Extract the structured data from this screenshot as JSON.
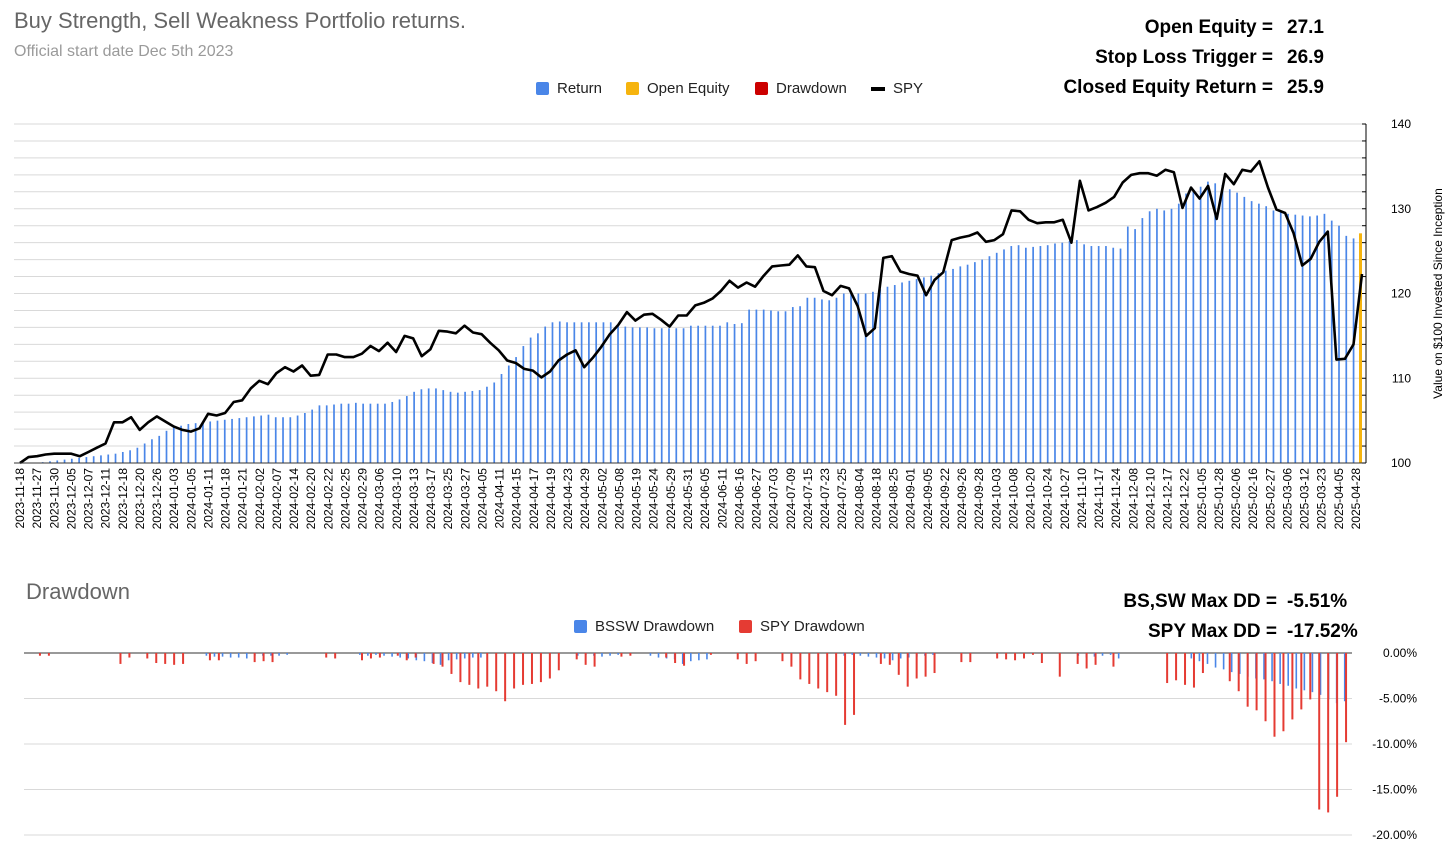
{
  "header": {
    "title": "Buy Strength, Sell Weakness Portfolio returns.",
    "subtitle": "Official start date Dec 5th 2023"
  },
  "stats": [
    {
      "label": "Open Equity =",
      "value": "27.1"
    },
    {
      "label": "Stop Loss Trigger =",
      "value": "26.9"
    },
    {
      "label": "Closed Equity Return =",
      "value": "25.9"
    }
  ],
  "drawdown_header": {
    "title": "Drawdown",
    "stats": [
      {
        "label": "BS,SW Max DD =",
        "value": "-5.51%"
      },
      {
        "label": "SPY Max DD =",
        "value": "-17.52%"
      }
    ]
  },
  "colors": {
    "return": "#4a86e8",
    "open_equity": "#f6b40e",
    "drawdown": "#cc0000",
    "spy": "#000000",
    "bssw_dd": "#4a86e8",
    "spy_dd": "#e53b33"
  },
  "chart_data": [
    {
      "type": "bar",
      "ylabel": "Value on $100 Invested Since Inception",
      "ylim": [
        100,
        140
      ],
      "yticks": [
        100,
        110,
        120,
        130,
        140
      ],
      "grid": true,
      "legend_position": "top",
      "legend": [
        "Return",
        "Open Equity",
        "Drawdown",
        "SPY"
      ],
      "x_tick_labels": [
        "2023-11-18",
        "2023-11-27",
        "2023-11-30",
        "2023-12-05",
        "2023-12-07",
        "2023-12-11",
        "2023-12-18",
        "2023-12-20",
        "2023-12-26",
        "2024-01-03",
        "2024-01-05",
        "2024-01-11",
        "2024-01-18",
        "2024-01-21",
        "2024-02-02",
        "2024-02-07",
        "2024-02-14",
        "2024-02-20",
        "2024-02-22",
        "2024-02-25",
        "2024-02-29",
        "2024-03-06",
        "2024-03-10",
        "2024-03-13",
        "2024-03-17",
        "2024-03-25",
        "2024-03-27",
        "2024-04-05",
        "2024-04-11",
        "2024-04-15",
        "2024-04-17",
        "2024-04-19",
        "2024-04-23",
        "2024-04-29",
        "2024-05-02",
        "2024-05-08",
        "2024-05-19",
        "2024-05-24",
        "2024-05-29",
        "2024-05-31",
        "2024-06-05",
        "2024-06-11",
        "2024-06-16",
        "2024-06-27",
        "2024-07-03",
        "2024-07-09",
        "2024-07-15",
        "2024-07-23",
        "2024-07-25",
        "2024-08-04",
        "2024-08-18",
        "2024-08-25",
        "2024-09-01",
        "2024-09-05",
        "2024-09-22",
        "2024-09-26",
        "2024-09-28",
        "2024-10-03",
        "2024-10-08",
        "2024-10-20",
        "2024-10-24",
        "2024-10-27",
        "2024-11-10",
        "2024-11-17",
        "2024-11-24",
        "2024-12-08",
        "2024-12-10",
        "2024-12-17",
        "2024-12-22",
        "2025-01-05",
        "2025-01-28",
        "2025-02-06",
        "2025-02-16",
        "2025-02-27",
        "2025-03-06",
        "2025-03-12",
        "2025-03-23",
        "2025-04-05",
        "2025-04-28"
      ],
      "series": [
        {
          "name": "Return",
          "values": [
            100,
            100,
            100,
            100.1,
            100.2,
            100.3,
            100.4,
            100.5,
            100.6,
            100.7,
            100.8,
            100.9,
            101,
            101.1,
            101.3,
            101.5,
            101.8,
            102.3,
            102.8,
            103.2,
            103.8,
            104.2,
            104.4,
            104.6,
            104.7,
            104.8,
            104.9,
            105,
            105.1,
            105.2,
            105.3,
            105.4,
            105.5,
            105.6,
            105.7,
            105.4,
            105.4,
            105.4,
            105.6,
            105.9,
            106.3,
            106.8,
            106.8,
            106.9,
            107,
            107,
            107.1,
            107,
            107,
            107,
            107,
            107.2,
            107.5,
            107.9,
            108.4,
            108.7,
            108.8,
            108.8,
            108.6,
            108.4,
            108.3,
            108.4,
            108.5,
            108.6,
            109,
            109.5,
            110.5,
            111.5,
            112.5,
            113.8,
            114.8,
            115.3,
            116.1,
            116.6,
            116.7,
            116.6,
            116.6,
            116.6,
            116.6,
            116.6,
            116.6,
            116.6,
            116.3,
            116.1,
            116,
            116,
            116,
            115.9,
            115.9,
            115.9,
            115.9,
            115.9,
            116.2,
            116.2,
            116.2,
            116.2,
            116.2,
            116.6,
            116.4,
            116.5,
            118.1,
            118.1,
            118.1,
            118,
            117.9,
            117.9,
            118.4,
            118.5,
            119.5,
            119.5,
            119.3,
            119.2,
            119.5,
            120,
            120,
            120,
            120,
            120.2,
            120.5,
            120.8,
            121,
            121.3,
            121.5,
            121.7,
            121.9,
            122.1,
            122.4,
            122.7,
            122.9,
            123.2,
            123.4,
            123.7,
            124,
            124.4,
            124.8,
            125.2,
            125.6,
            125.7,
            125.4,
            125.5,
            125.6,
            125.7,
            125.9,
            126,
            126.2,
            126.3,
            125.8,
            125.6,
            125.6,
            125.6,
            125.4,
            125.3,
            127.9,
            127.6,
            128.9,
            129.7,
            130,
            129.8,
            130,
            130.6,
            131.8,
            132,
            132.6,
            133.2,
            133,
            132.8,
            132.3,
            131.9,
            131.4,
            130.9,
            130.6,
            130.3,
            129.8,
            129.6,
            129.4,
            129.3,
            129.2,
            129.1,
            129.2,
            129.4,
            128.6,
            128,
            126.8,
            126.5
          ]
        },
        {
          "name": "SPY",
          "values": [
            100,
            100.7,
            100.8,
            101,
            101.1,
            101.1,
            101.1,
            100.8,
            101.3,
            101.8,
            102.3,
            104.8,
            104.8,
            105.4,
            103.9,
            104.8,
            105.5,
            104.9,
            104.3,
            103.9,
            103.7,
            104.1,
            105.8,
            105.6,
            105.9,
            107.2,
            107.4,
            108.8,
            109.7,
            109.3,
            110.6,
            111.3,
            110.8,
            111.5,
            110.3,
            110.4,
            112.8,
            112.8,
            112.5,
            112.5,
            112.9,
            113.8,
            113.2,
            114.2,
            113.1,
            115,
            114.7,
            112.6,
            113.4,
            115.6,
            115.5,
            115.3,
            116.2,
            115.4,
            115.2,
            114.2,
            113.3,
            112.1,
            111.8,
            111.1,
            110.9,
            110.1,
            110.8,
            112.1,
            112.8,
            113.3,
            111.3,
            112.4,
            113.7,
            115.2,
            116.3,
            117.8,
            116.8,
            117.5,
            117.6,
            116.9,
            116.1,
            117.4,
            117.4,
            118.6,
            118.9,
            119.4,
            120.3,
            121.5,
            120.7,
            121.3,
            120.8,
            122.1,
            123.2,
            123.3,
            123.4,
            124.5,
            123.2,
            123.1,
            120.3,
            119.8,
            120.9,
            120.6,
            118.5,
            115,
            115.9,
            124.2,
            124.4,
            122.6,
            122.3,
            122.1,
            119.8,
            121.6,
            122.5,
            126.3,
            126.6,
            126.8,
            127.2,
            126.1,
            126.3,
            127,
            129.8,
            129.7,
            128.7,
            128.3,
            128.4,
            128.4,
            128.7,
            126,
            133.3,
            129.8,
            130.2,
            130.7,
            131.4,
            133.1,
            134,
            134.2,
            134.2,
            133.9,
            134.6,
            134.3,
            130.1,
            132.5,
            131.2,
            132.7,
            128.8,
            134.1,
            132.9,
            134.6,
            134.4,
            135.6,
            132.5,
            129.9,
            129.5,
            127.1,
            123.3,
            124.1,
            126.1,
            127.3,
            112.2,
            112.3,
            114,
            122.3
          ]
        },
        {
          "name": "Open Equity",
          "values": [
            127.1
          ]
        }
      ]
    },
    {
      "type": "bar",
      "title": "Drawdown",
      "ylim": [
        -20,
        0
      ],
      "yticks": [
        "0.00%",
        "-5.00%",
        "-10.00%",
        "-15.00%",
        "-20.00%"
      ],
      "grid": true,
      "legend_position": "top",
      "series": [
        {
          "name": "BSSW Drawdown",
          "values": [
            0,
            0,
            0,
            0,
            0,
            0,
            0,
            0,
            0,
            0,
            0,
            0,
            0,
            0,
            0,
            0,
            0,
            0,
            0,
            0,
            0,
            0,
            -0.3,
            -0.4,
            -0.4,
            -0.5,
            -0.5,
            -0.6,
            -0.3,
            -0.3,
            -0.3,
            -0.3,
            -0.2,
            0,
            0,
            0,
            0,
            0,
            0,
            0,
            0,
            -0.2,
            -0.3,
            -0.2,
            -0.3,
            -0.4,
            -0.5,
            -0.6,
            -0.8,
            -0.9,
            -1.1,
            -1.3,
            -0.8,
            -0.7,
            -0.6,
            -0.5,
            -0.5,
            0,
            0,
            0,
            0,
            0,
            0,
            0,
            0,
            0,
            0,
            0,
            -0.3,
            -0.2,
            -0.3,
            -0.4,
            -0.3,
            -0.2,
            0,
            0,
            0,
            -0.3,
            -0.5,
            -0.6,
            -0.7,
            -1.2,
            -0.9,
            -0.8,
            -0.7,
            0,
            0,
            0,
            0,
            0,
            0,
            0,
            0,
            0,
            0,
            0,
            0,
            0,
            0,
            0,
            -0.2,
            -0.3,
            -0.2,
            -0.3,
            -0.4,
            -0.5,
            -0.6,
            -0.8,
            -0.6,
            -0.5,
            -0.4,
            -0.3,
            -0.2,
            0,
            0,
            0,
            0,
            0,
            0,
            0,
            0,
            0,
            0,
            0,
            0,
            0,
            0,
            0,
            0,
            0,
            -0.3,
            -0.5,
            -0.4,
            -0.3,
            -0.2,
            -0.6,
            0,
            0,
            0,
            0,
            0,
            0,
            0,
            0,
            -0.6,
            -0.9,
            -1.2,
            -1.6,
            -1.8,
            -2.1,
            -2.3,
            -2.6,
            -2.8,
            -2.9,
            -3.1,
            -3.4,
            -3.6,
            -3.9,
            -4.1,
            -4.3,
            -4.6,
            -5.1,
            -5.51,
            -5.3
          ]
        },
        {
          "name": "SPY Drawdown",
          "values": [
            0,
            -0.3,
            -0.3,
            0,
            0,
            0,
            0,
            0,
            0,
            0,
            -1.2,
            -0.5,
            0,
            -0.6,
            -1.1,
            -1.2,
            -1.3,
            -1.2,
            0,
            0,
            -0.8,
            -0.8,
            0,
            0,
            0,
            -1,
            -0.9,
            -1,
            0,
            0,
            0,
            0,
            0,
            -0.5,
            -0.6,
            0,
            0,
            -0.8,
            -0.6,
            -0.5,
            0,
            -0.3,
            -0.8,
            -0.5,
            0,
            -1.2,
            -1.5,
            -2.3,
            -3.2,
            -3.5,
            -3.9,
            -3.7,
            -4.2,
            -5.3,
            -3.9,
            -3.5,
            -3.4,
            -3.2,
            -2.8,
            -1.9,
            0,
            -0.7,
            -1.3,
            -1.5,
            0,
            0,
            -0.4,
            -0.3,
            0,
            0,
            0,
            -0.5,
            -1.1,
            -1.4,
            0,
            0,
            -0.2,
            0,
            0,
            -0.7,
            -1.2,
            -0.9,
            0,
            0,
            -0.9,
            -1.5,
            -2.9,
            -3.4,
            -3.9,
            -4.3,
            -4.7,
            -7.9,
            -6.8,
            0,
            0,
            -1.2,
            -1.3,
            -2.4,
            -3.7,
            -2.8,
            -2.6,
            -2.2,
            0,
            0,
            -1,
            -1,
            0,
            0,
            -0.6,
            -0.7,
            -0.8,
            -0.6,
            -0.2,
            -1.1,
            0,
            -2.6,
            0,
            -1.2,
            -1.7,
            -1.3,
            0,
            -1.5,
            0,
            0,
            0,
            0,
            0,
            -3.3,
            -3,
            -3.5,
            -3.8,
            -2.2,
            0,
            0,
            -3.1,
            -4.2,
            -5.9,
            -6.3,
            -7.5,
            -9.2,
            -8.6,
            -7.3,
            -6.2,
            -5.1,
            -17.2,
            -17.52,
            -15.8,
            -9.8
          ]
        }
      ]
    }
  ]
}
